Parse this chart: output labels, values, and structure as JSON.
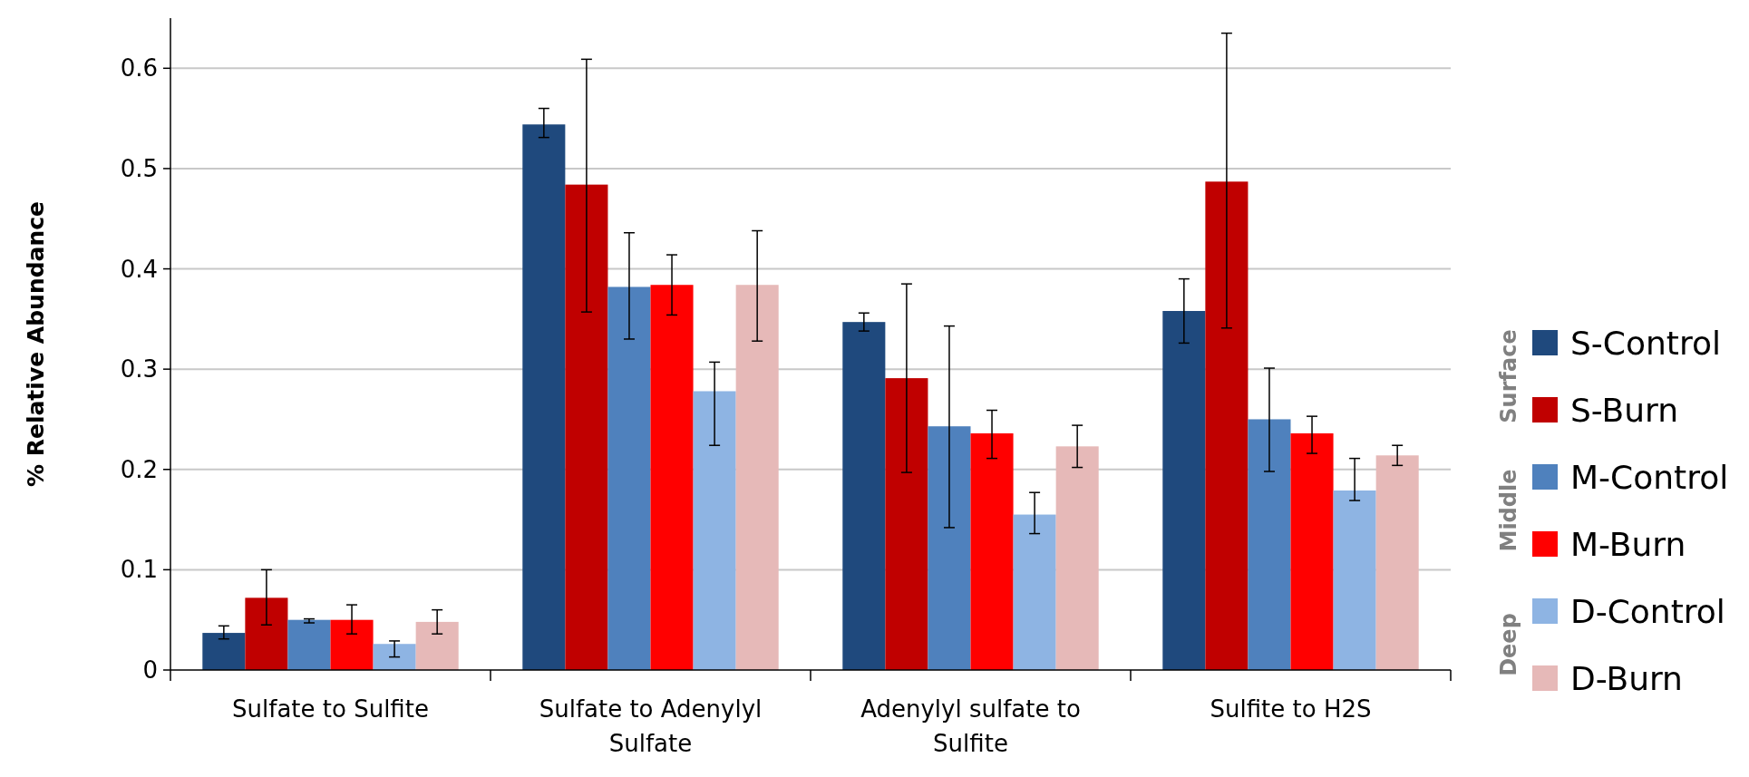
{
  "chart_data": {
    "type": "bar",
    "ylabel": "% Relative Abundance",
    "categories": [
      "Sulfate to Sulfite",
      "Sulfate to Adenylyl Sulfate",
      "Adenylyl sulfate to Sulfite",
      "Sulfite to H2S"
    ],
    "series": [
      {
        "name": "S-Control",
        "color": "#1f497d",
        "values": [
          0.037,
          0.544,
          0.347,
          0.358
        ],
        "errors": [
          [
            0.031,
            0.044
          ],
          [
            0.531,
            0.56
          ],
          [
            0.338,
            0.356
          ],
          [
            0.326,
            0.39
          ]
        ]
      },
      {
        "name": "S-Burn",
        "color": "#c00000",
        "values": [
          0.072,
          0.484,
          0.291,
          0.487
        ],
        "errors": [
          [
            0.045,
            0.1
          ],
          [
            0.357,
            0.609
          ],
          [
            0.197,
            0.385
          ],
          [
            0.341,
            0.635
          ]
        ]
      },
      {
        "name": "M-Control",
        "color": "#4f81bd",
        "values": [
          0.05,
          0.382,
          0.243,
          0.25
        ],
        "errors": [
          [
            0.047,
            0.051
          ],
          [
            0.33,
            0.436
          ],
          [
            0.142,
            0.343
          ],
          [
            0.198,
            0.301
          ]
        ]
      },
      {
        "name": "M-Burn",
        "color": "#ff0000",
        "values": [
          0.05,
          0.384,
          0.236,
          0.236
        ],
        "errors": [
          [
            0.036,
            0.065
          ],
          [
            0.354,
            0.414
          ],
          [
            0.211,
            0.259
          ],
          [
            0.216,
            0.253
          ]
        ]
      },
      {
        "name": "D-Control",
        "color": "#8eb4e3",
        "values": [
          0.026,
          0.278,
          0.155,
          0.179
        ],
        "errors": [
          [
            0.013,
            0.029
          ],
          [
            0.224,
            0.307
          ],
          [
            0.136,
            0.177
          ],
          [
            0.169,
            0.211
          ]
        ]
      },
      {
        "name": "D-Burn",
        "color": "#e6b9b8",
        "values": [
          0.048,
          0.384,
          0.223,
          0.214
        ],
        "errors": [
          [
            0.036,
            0.06
          ],
          [
            0.328,
            0.438
          ],
          [
            0.202,
            0.244
          ],
          [
            0.204,
            0.224
          ]
        ]
      }
    ],
    "annotations": [
      "Surface",
      "Middle",
      "Deep"
    ],
    "ylim": [
      0,
      0.65
    ],
    "yticks": [
      0,
      0.1,
      0.2,
      0.3,
      0.4,
      0.5,
      0.6
    ],
    "grid": "y",
    "legend": "right"
  }
}
